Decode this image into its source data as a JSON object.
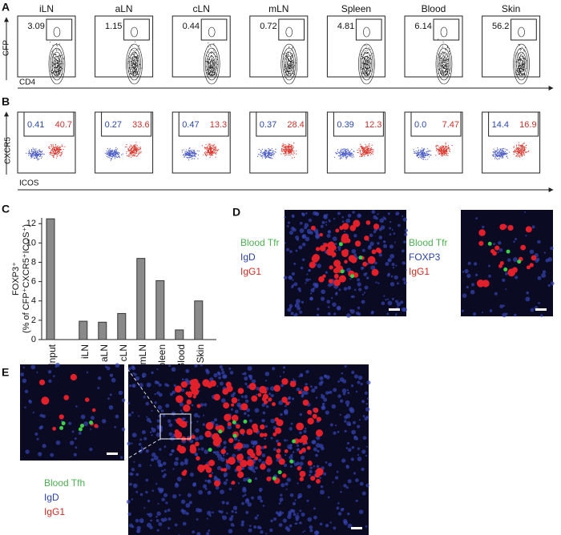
{
  "panels": {
    "a": "A",
    "b": "B",
    "c": "C",
    "d": "D",
    "e": "E"
  },
  "panel_a": {
    "tissues": [
      "iLN",
      "aLN",
      "cLN",
      "mLN",
      "Spleen",
      "Blood",
      "Skin"
    ],
    "gate_values": [
      "3.09",
      "1.15",
      "0.44",
      "0.72",
      "4.81",
      "6.14",
      "56.2"
    ],
    "y_label": "CFP",
    "x_label": "CD4"
  },
  "panel_b": {
    "blue_values": [
      "0.41",
      "0.27",
      "0.47",
      "0.37",
      "0.39",
      "0.0",
      "14.4"
    ],
    "red_values": [
      "40.7",
      "33.6",
      "13.3",
      "28.4",
      "12.3",
      "7.47",
      "16.9"
    ],
    "y_label": "CXCR5",
    "x_label": "ICOS"
  },
  "chart_data": {
    "type": "bar",
    "y_label": "FOXP3⁺",
    "y_label_2": "(% of CFP⁺CXCR5⁺ICOS⁺)",
    "categories": [
      "Input",
      "iLN",
      "aLN",
      "cLN",
      "mLN",
      "Spleen",
      "Blood",
      "Skin"
    ],
    "values": [
      12.5,
      1.9,
      1.8,
      2.7,
      8.4,
      6.1,
      1.0,
      4.0
    ],
    "color": "#8a8a8a",
    "ylim": [
      0,
      12.6
    ],
    "yticks": [
      0,
      2,
      4,
      6,
      8,
      10,
      12
    ]
  },
  "panel_d": {
    "legend_1": [
      "Blood Tfr",
      "IgD",
      "IgG1"
    ],
    "legend_2": [
      "Blood Tfr",
      "FOXP3",
      "IgG1"
    ]
  },
  "panel_e": {
    "legend": [
      "Blood Tfh",
      "IgD",
      "IgG1"
    ]
  }
}
